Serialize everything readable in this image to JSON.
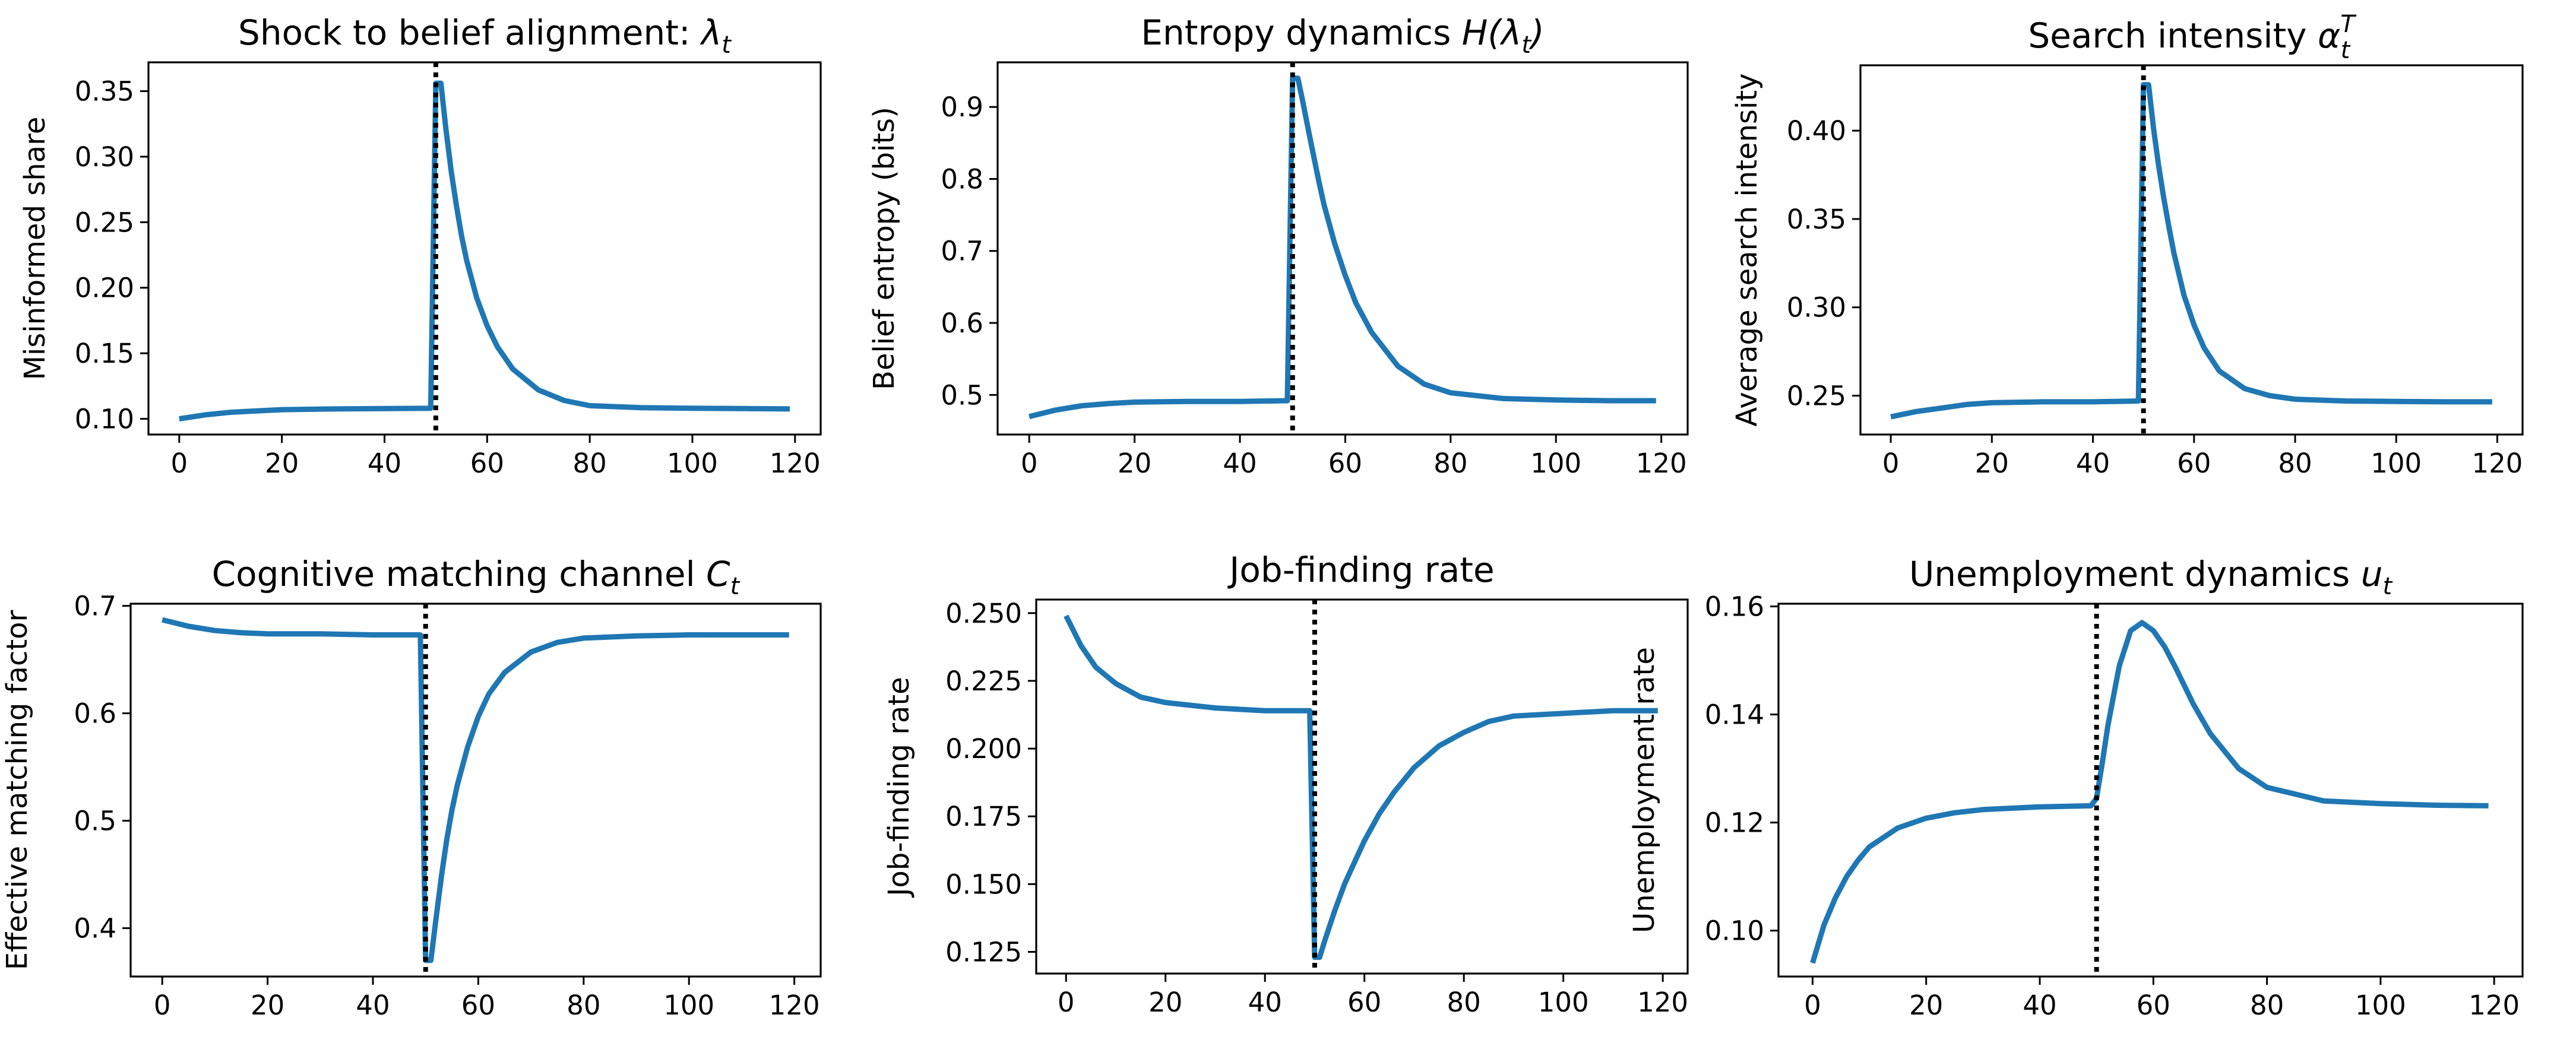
{
  "figure": {
    "colors": {
      "series": "#1f77b4",
      "shock_line": "#000000",
      "frame": "#000000"
    },
    "shock_period": 50,
    "panels": [
      {
        "title_plain": "Shock to belief alignment: ",
        "title_math": "λ",
        "title_sub": "t",
        "title_sup": "",
        "title_suffix": "",
        "ylabel": "Misinformed share"
      },
      {
        "title_plain": "Entropy dynamics ",
        "title_math": "H(λ",
        "title_sub": "t",
        "title_sup": "",
        "title_suffix": ")",
        "ylabel": "Belief entropy (bits)"
      },
      {
        "title_plain": "Search intensity ",
        "title_math": "α",
        "title_sub": "t",
        "title_sup": "T",
        "title_suffix": "",
        "ylabel": "Average search intensity"
      },
      {
        "title_plain": "Cognitive matching channel ",
        "title_math": "C",
        "title_sub": "t",
        "title_sup": "",
        "title_suffix": "",
        "ylabel": "Effective matching factor"
      },
      {
        "title_plain": "Job-finding rate",
        "title_math": "",
        "title_sub": "",
        "title_sup": "",
        "title_suffix": "",
        "ylabel": "Job-finding rate"
      },
      {
        "title_plain": "Unemployment dynamics ",
        "title_math": "u",
        "title_sub": "t",
        "title_sup": "",
        "title_suffix": "",
        "ylabel": "Unemployment rate"
      }
    ]
  },
  "chart_data": [
    {
      "type": "line",
      "title": "Shock to belief alignment: λ_t",
      "xlabel": "",
      "ylabel": "Misinformed share",
      "xlim": [
        -6,
        125
      ],
      "ylim": [
        0.088,
        0.372
      ],
      "xticks": [
        0,
        20,
        40,
        60,
        80,
        100,
        120
      ],
      "yticks": [
        0.1,
        0.15,
        0.2,
        0.25,
        0.3,
        0.35
      ],
      "ytick_labels": [
        "0.10",
        "0.15",
        "0.20",
        "0.25",
        "0.30",
        "0.35"
      ],
      "shock_x": 50,
      "series": [
        {
          "name": "lambda",
          "x": [
            0,
            5,
            10,
            15,
            20,
            30,
            40,
            49,
            50,
            51,
            52,
            53,
            54,
            55,
            56,
            58,
            60,
            62,
            65,
            70,
            75,
            80,
            90,
            100,
            110,
            119
          ],
          "y": [
            0.1,
            0.103,
            0.105,
            0.106,
            0.107,
            0.1075,
            0.1078,
            0.108,
            0.356,
            0.356,
            0.32,
            0.289,
            0.263,
            0.24,
            0.221,
            0.192,
            0.171,
            0.155,
            0.138,
            0.122,
            0.114,
            0.11,
            0.1085,
            0.108,
            0.1078,
            0.1075
          ]
        }
      ]
    },
    {
      "type": "line",
      "title": "Entropy dynamics H(λ_t)",
      "xlabel": "",
      "ylabel": "Belief entropy (bits)",
      "xlim": [
        -6,
        125
      ],
      "ylim": [
        0.445,
        0.962
      ],
      "xticks": [
        0,
        20,
        40,
        60,
        80,
        100,
        120
      ],
      "yticks": [
        0.5,
        0.6,
        0.7,
        0.8,
        0.9
      ],
      "ytick_labels": [
        "0.5",
        "0.6",
        "0.7",
        "0.8",
        "0.9"
      ],
      "shock_x": 50,
      "series": [
        {
          "name": "entropy",
          "x": [
            0,
            5,
            10,
            15,
            20,
            30,
            40,
            49,
            50,
            51,
            52,
            53,
            54,
            55,
            56,
            58,
            60,
            62,
            65,
            70,
            75,
            80,
            90,
            100,
            110,
            119
          ],
          "y": [
            0.47,
            0.479,
            0.485,
            0.488,
            0.49,
            0.491,
            0.491,
            0.492,
            0.94,
            0.94,
            0.905,
            0.868,
            0.832,
            0.796,
            0.763,
            0.71,
            0.666,
            0.628,
            0.587,
            0.54,
            0.515,
            0.503,
            0.495,
            0.493,
            0.492,
            0.492
          ]
        }
      ]
    },
    {
      "type": "line",
      "title": "Search intensity α_t^T",
      "xlabel": "",
      "ylabel": "Average search intensity",
      "xlim": [
        -6,
        125
      ],
      "ylim": [
        0.228,
        0.437
      ],
      "xticks": [
        0,
        20,
        40,
        60,
        80,
        100,
        120
      ],
      "yticks": [
        0.25,
        0.3,
        0.35,
        0.4
      ],
      "ytick_labels": [
        "0.25",
        "0.30",
        "0.35",
        "0.40"
      ],
      "shock_x": 50,
      "series": [
        {
          "name": "search",
          "x": [
            0,
            5,
            10,
            15,
            20,
            30,
            40,
            49,
            50,
            51,
            52,
            53,
            54,
            55,
            56,
            58,
            60,
            62,
            65,
            70,
            75,
            80,
            90,
            100,
            110,
            119
          ],
          "y": [
            0.238,
            0.241,
            0.243,
            0.245,
            0.246,
            0.2465,
            0.2465,
            0.247,
            0.426,
            0.426,
            0.401,
            0.38,
            0.362,
            0.346,
            0.331,
            0.307,
            0.29,
            0.277,
            0.264,
            0.254,
            0.25,
            0.248,
            0.247,
            0.2467,
            0.2465,
            0.2465
          ]
        }
      ]
    },
    {
      "type": "line",
      "title": "Cognitive matching channel C_t",
      "xlabel": "",
      "ylabel": "Effective matching factor",
      "xlim": [
        -6,
        125
      ],
      "ylim": [
        0.355,
        0.702
      ],
      "xticks": [
        0,
        20,
        40,
        60,
        80,
        100,
        120
      ],
      "yticks": [
        0.4,
        0.5,
        0.6,
        0.7
      ],
      "ytick_labels": [
        "0.4",
        "0.5",
        "0.6",
        "0.7"
      ],
      "shock_x": 50,
      "series": [
        {
          "name": "matching",
          "x": [
            0,
            5,
            10,
            15,
            20,
            30,
            40,
            49,
            50,
            51,
            52,
            53,
            54,
            55,
            56,
            58,
            60,
            62,
            65,
            70,
            75,
            80,
            90,
            100,
            110,
            119
          ],
          "y": [
            0.687,
            0.681,
            0.677,
            0.675,
            0.674,
            0.674,
            0.673,
            0.673,
            0.37,
            0.37,
            0.41,
            0.448,
            0.482,
            0.51,
            0.533,
            0.569,
            0.597,
            0.618,
            0.638,
            0.657,
            0.666,
            0.67,
            0.672,
            0.673,
            0.673,
            0.673
          ]
        }
      ]
    },
    {
      "type": "line",
      "title": "Job-finding rate",
      "xlabel": "",
      "ylabel": "Job-finding rate",
      "xlim": [
        -6,
        125
      ],
      "ylim": [
        0.117,
        0.255
      ],
      "xticks": [
        0,
        20,
        40,
        60,
        80,
        100,
        120
      ],
      "yticks": [
        0.125,
        0.15,
        0.175,
        0.2,
        0.225,
        0.25
      ],
      "ytick_labels": [
        "0.125",
        "0.150",
        "0.175",
        "0.200",
        "0.225",
        "0.250"
      ],
      "shock_x": 50,
      "series": [
        {
          "name": "job_finding",
          "x": [
            0,
            3,
            6,
            10,
            15,
            20,
            30,
            40,
            49,
            50,
            51,
            52,
            54,
            56,
            58,
            60,
            63,
            66,
            70,
            75,
            80,
            85,
            90,
            100,
            110,
            119
          ],
          "y": [
            0.249,
            0.238,
            0.23,
            0.224,
            0.219,
            0.217,
            0.215,
            0.214,
            0.214,
            0.123,
            0.123,
            0.129,
            0.14,
            0.15,
            0.158,
            0.166,
            0.176,
            0.184,
            0.193,
            0.201,
            0.206,
            0.21,
            0.212,
            0.213,
            0.214,
            0.214
          ]
        }
      ]
    },
    {
      "type": "line",
      "title": "Unemployment dynamics u_t",
      "xlabel": "",
      "ylabel": "Unemployment rate",
      "xlim": [
        -6,
        125
      ],
      "ylim": [
        0.0915,
        0.1605
      ],
      "xticks": [
        0,
        20,
        40,
        60,
        80,
        100,
        120
      ],
      "yticks": [
        0.1,
        0.12,
        0.14,
        0.16
      ],
      "ytick_labels": [
        "0.10",
        "0.12",
        "0.14",
        "0.16"
      ],
      "shock_x": 50,
      "series": [
        {
          "name": "unemployment",
          "x": [
            0,
            2,
            4,
            6,
            8,
            10,
            15,
            20,
            25,
            30,
            40,
            49,
            50,
            51,
            52,
            54,
            56,
            58,
            60,
            62,
            64,
            67,
            70,
            75,
            80,
            90,
            100,
            110,
            119
          ],
          "y": [
            0.094,
            0.101,
            0.106,
            0.11,
            0.113,
            0.1155,
            0.119,
            0.1208,
            0.1218,
            0.1224,
            0.1229,
            0.1231,
            0.1245,
            0.131,
            0.138,
            0.149,
            0.1555,
            0.157,
            0.1555,
            0.1525,
            0.1485,
            0.142,
            0.1365,
            0.13,
            0.1265,
            0.124,
            0.1235,
            0.1232,
            0.1231
          ]
        }
      ]
    }
  ]
}
